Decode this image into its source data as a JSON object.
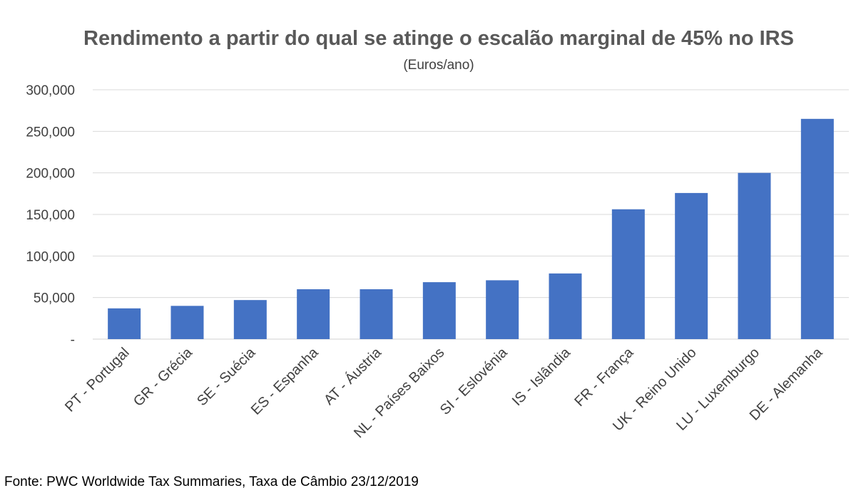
{
  "chart_data": {
    "type": "bar",
    "title": "Rendimento a partir do qual se atinge o escalão marginal de 45% no IRS",
    "subtitle": "(Euros/ano)",
    "categories": [
      "PT - Portugal",
      "GR - Grécia",
      "SE - Suécia",
      "ES - Espanha",
      "AT - Áustria",
      "NL - Países Baixos",
      "SI - Eslovénia",
      "IS - Islândia",
      "FR - França",
      "UK - Reino Unido",
      "LU - Luxemburgo",
      "DE - Alemanha"
    ],
    "values": [
      37000,
      40000,
      47000,
      60000,
      60000,
      68500,
      70800,
      79000,
      156200,
      175800,
      200000,
      265000
    ],
    "ylim": [
      0,
      300000
    ],
    "yticks": [
      0,
      50000,
      100000,
      150000,
      200000,
      250000,
      300000
    ],
    "ytick_labels": [
      "-",
      "50,000",
      "100,000",
      "150,000",
      "200,000",
      "250,000",
      "300,000"
    ],
    "xlabel": "",
    "ylabel": "",
    "grid": true,
    "bar_color": "#4472c4"
  },
  "source_note": "Fonte: PWC Worldwide Tax Summaries, Taxa de Câmbio 23/12/2019"
}
